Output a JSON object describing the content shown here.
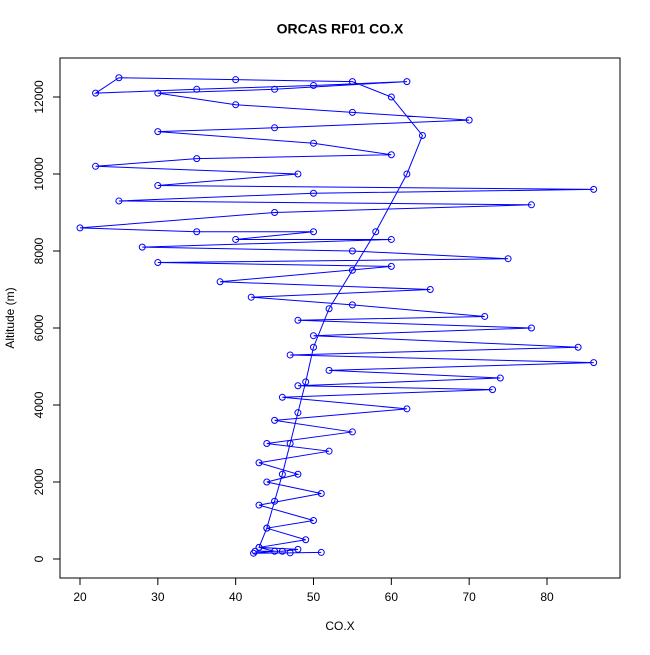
{
  "chart_data": {
    "type": "scatter",
    "lines": true,
    "title": "ORCAS RF01 CO.X",
    "x_label": "CO.X",
    "y_label": "Altitude (m)",
    "color": "#0000ff",
    "x": [
      42.5,
      46,
      48,
      43,
      44,
      45,
      46,
      47,
      48,
      49,
      50,
      52,
      55,
      58,
      62,
      64,
      60,
      55,
      40,
      25,
      22,
      35,
      50,
      62,
      45,
      30,
      40,
      55,
      70,
      45,
      30,
      50,
      60,
      35,
      22,
      48,
      30,
      86,
      50,
      25,
      78,
      45,
      20,
      35,
      50,
      40,
      60,
      28,
      55,
      75,
      30,
      60,
      38,
      65,
      42,
      55,
      72,
      48,
      78,
      50,
      84,
      47,
      86,
      52,
      74,
      48,
      73,
      46,
      62,
      45,
      55,
      44,
      52,
      43,
      48,
      44,
      51,
      43,
      50,
      44,
      49,
      43,
      45,
      42.3,
      47,
      51
    ],
    "values": [
      200,
      200,
      250,
      300,
      800,
      1500,
      2200,
      3000,
      3800,
      4600,
      5500,
      6500,
      7500,
      8500,
      10000,
      11000,
      12000,
      12400,
      12450,
      12500,
      12100,
      12200,
      12300,
      12400,
      12200,
      12100,
      11800,
      11600,
      11400,
      11200,
      11100,
      10800,
      10500,
      10400,
      10200,
      10000,
      9700,
      9600,
      9500,
      9300,
      9200,
      9000,
      8600,
      8500,
      8500,
      8300,
      8300,
      8100,
      8000,
      7800,
      7700,
      7600,
      7200,
      7000,
      6800,
      6600,
      6300,
      6200,
      6000,
      5800,
      5500,
      5300,
      5100,
      4900,
      4700,
      4500,
      4400,
      4200,
      3900,
      3600,
      3300,
      3000,
      2800,
      2500,
      2200,
      2000,
      1700,
      1400,
      1000,
      800,
      500,
      300,
      200,
      150,
      160,
      170
    ],
    "xlim": [
      17.43,
      89.38
    ],
    "ylim": [
      -494,
      13013
    ],
    "xticks": [
      20,
      30,
      40,
      50,
      60,
      70,
      80
    ],
    "yticks": [
      0,
      2000,
      4000,
      6000,
      8000,
      10000,
      12000
    ]
  }
}
